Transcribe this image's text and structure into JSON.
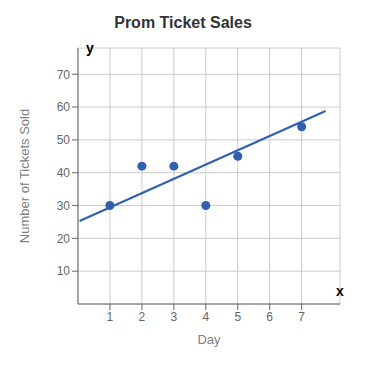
{
  "chart_data": {
    "type": "scatter",
    "title": "Prom Ticket Sales",
    "x_label": "Day",
    "y_label": "Number of Tickets Sold",
    "x": [
      1,
      2,
      3,
      4,
      5,
      7
    ],
    "values": [
      30,
      42,
      42,
      30,
      45,
      54
    ],
    "color": "#3060b0",
    "trend_line": {
      "x": [
        0.05,
        7.75
      ],
      "values": [
        25.3,
        58.8
      ],
      "color": "#3060b0"
    },
    "annotations": [
      "x",
      "y"
    ],
    "xlim": [
      0,
      8.2
    ],
    "ylim": [
      0,
      78
    ],
    "xticks": [
      1,
      2,
      3,
      4,
      5,
      6,
      7
    ],
    "yticks": [
      10,
      20,
      30,
      40,
      50,
      60,
      70
    ],
    "grid": true
  }
}
